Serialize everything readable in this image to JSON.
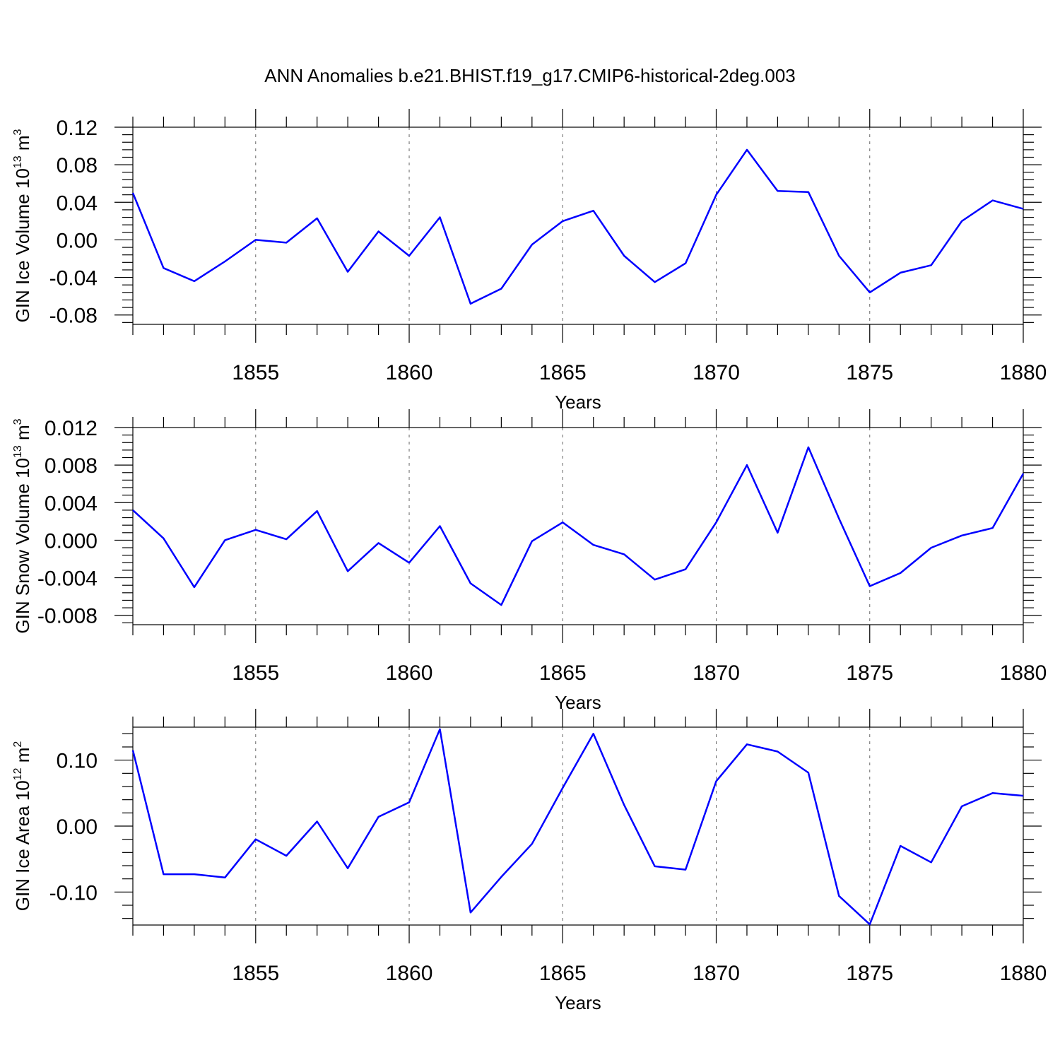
{
  "title": "ANN Anomalies b.e21.BHIST.f19_g17.CMIP6-historical-2deg.003",
  "colors": {
    "line": "#0000ff",
    "axis": "#000000",
    "grid": "#666666"
  },
  "chart_data": [
    {
      "type": "line",
      "ylabel": {
        "main": "GIN Ice Volume 10",
        "exp": "13",
        "unit": " m",
        "unit_exp": "3"
      },
      "xlabel": "Years",
      "xlim": [
        1851,
        1880
      ],
      "ylim": [
        -0.09,
        0.12
      ],
      "yticks": [
        -0.08,
        -0.04,
        0.0,
        0.04,
        0.08,
        0.12
      ],
      "ytick_labels": [
        "-0.08",
        "-0.04",
        "0.00",
        "0.04",
        "0.08",
        "0.12"
      ],
      "xticks": [
        1855,
        1860,
        1865,
        1870,
        1875,
        1880
      ],
      "xtick_labels": [
        "1855",
        "1860",
        "1865",
        "1870",
        "1875",
        "1880"
      ],
      "grid": "dashed vertical at major x ticks",
      "x": [
        1851,
        1852,
        1853,
        1854,
        1855,
        1856,
        1857,
        1858,
        1859,
        1860,
        1861,
        1862,
        1863,
        1864,
        1865,
        1866,
        1867,
        1868,
        1869,
        1870,
        1871,
        1872,
        1873,
        1874,
        1875,
        1876,
        1877,
        1878,
        1879,
        1880
      ],
      "values": [
        0.05,
        -0.03,
        -0.044,
        -0.023,
        0.0,
        -0.003,
        0.023,
        -0.034,
        0.009,
        -0.017,
        0.024,
        -0.068,
        -0.052,
        -0.005,
        0.02,
        0.031,
        -0.017,
        -0.045,
        -0.025,
        0.048,
        0.096,
        0.052,
        0.051,
        -0.017,
        -0.056,
        -0.035,
        -0.027,
        0.02,
        0.042,
        0.033
      ]
    },
    {
      "type": "line",
      "ylabel": {
        "main": "GIN Snow Volume 10",
        "exp": "13",
        "unit": " m",
        "unit_exp": "3"
      },
      "xlabel": "Years",
      "xlim": [
        1851,
        1880
      ],
      "ylim": [
        -0.009,
        0.012
      ],
      "yticks": [
        -0.008,
        -0.004,
        0.0,
        0.004,
        0.008,
        0.012
      ],
      "ytick_labels": [
        "-0.008",
        "-0.004",
        "0.000",
        "0.004",
        "0.008",
        "0.012"
      ],
      "xticks": [
        1855,
        1860,
        1865,
        1870,
        1875,
        1880
      ],
      "xtick_labels": [
        "1855",
        "1860",
        "1865",
        "1870",
        "1875",
        "1880"
      ],
      "grid": "dashed vertical at major x ticks",
      "x": [
        1851,
        1852,
        1853,
        1854,
        1855,
        1856,
        1857,
        1858,
        1859,
        1860,
        1861,
        1862,
        1863,
        1864,
        1865,
        1866,
        1867,
        1868,
        1869,
        1870,
        1871,
        1872,
        1873,
        1874,
        1875,
        1876,
        1877,
        1878,
        1879,
        1880
      ],
      "values": [
        0.0032,
        0.0002,
        -0.005,
        0.0,
        0.0011,
        0.0001,
        0.0031,
        -0.0033,
        -0.0003,
        -0.0024,
        0.0015,
        -0.0046,
        -0.0069,
        -0.0001,
        0.0019,
        -0.0005,
        -0.0015,
        -0.0042,
        -0.0031,
        0.0019,
        0.008,
        0.0008,
        0.0099,
        0.0023,
        -0.0049,
        -0.0035,
        -0.0008,
        0.0005,
        0.0013,
        0.0071
      ]
    },
    {
      "type": "line",
      "ylabel": {
        "main": "GIN Ice Area 10",
        "exp": "12",
        "unit": " m",
        "unit_exp": "2"
      },
      "xlabel": "Years",
      "xlim": [
        1851,
        1880
      ],
      "ylim": [
        -0.15,
        0.15
      ],
      "yticks": [
        -0.1,
        0.0,
        0.1
      ],
      "ytick_labels": [
        "-0.10",
        "0.00",
        "0.10"
      ],
      "xticks": [
        1855,
        1860,
        1865,
        1870,
        1875,
        1880
      ],
      "xtick_labels": [
        "1855",
        "1860",
        "1865",
        "1870",
        "1875",
        "1880"
      ],
      "grid": "dashed vertical at major x ticks",
      "x": [
        1851,
        1852,
        1853,
        1854,
        1855,
        1856,
        1857,
        1858,
        1859,
        1860,
        1861,
        1862,
        1863,
        1864,
        1865,
        1866,
        1867,
        1868,
        1869,
        1870,
        1871,
        1872,
        1873,
        1874,
        1875,
        1876,
        1877,
        1878,
        1879,
        1880
      ],
      "values": [
        0.115,
        -0.073,
        -0.073,
        -0.078,
        -0.02,
        -0.045,
        0.007,
        -0.064,
        0.014,
        0.036,
        0.147,
        -0.131,
        -0.077,
        -0.027,
        0.058,
        0.14,
        0.032,
        -0.061,
        -0.066,
        0.068,
        0.124,
        0.113,
        0.081,
        -0.106,
        -0.149,
        -0.03,
        -0.055,
        0.03,
        0.05,
        0.046
      ]
    }
  ]
}
